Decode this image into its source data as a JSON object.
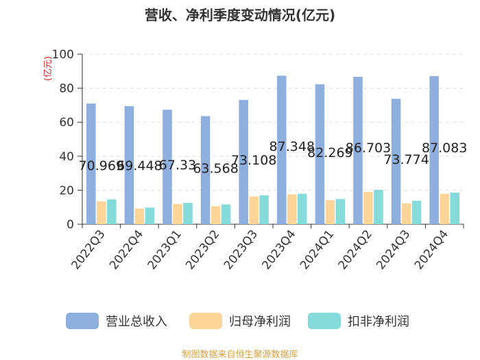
{
  "title": "营收、净利季度变动情况(亿元)",
  "source": "制图数据来自恒生聚源数据库",
  "chart_data": {
    "type": "bar",
    "title": "营收、净利季度变动情况(亿元)",
    "ylabel": "(亿元)",
    "ylim": [
      0,
      100
    ],
    "yticks": [
      0,
      20,
      40,
      60,
      80,
      100
    ],
    "grid": true,
    "legend_position": "bottom",
    "categories": [
      "2022Q3",
      "2022Q4",
      "2023Q1",
      "2023Q2",
      "2023Q3",
      "2023Q4",
      "2024Q1",
      "2024Q2",
      "2024Q3",
      "2024Q4"
    ],
    "series": [
      {
        "name": "营业总收入",
        "color": "#8eaede",
        "values": [
          70.969,
          69.448,
          67.33,
          63.568,
          73.108,
          87.348,
          82.269,
          86.703,
          73.774,
          87.083
        ]
      },
      {
        "name": "归母净利润",
        "color": "#fdd598",
        "values": [
          13.5,
          9.2,
          11.9,
          10.6,
          16.3,
          17.6,
          14.1,
          19.0,
          12.3,
          17.9
        ]
      },
      {
        "name": "扣非净利润",
        "color": "#85dada",
        "values": [
          14.6,
          9.8,
          12.6,
          11.6,
          17.0,
          17.9,
          14.8,
          20.2,
          13.8,
          18.6
        ]
      }
    ],
    "data_labels": [
      "70.969",
      "69.448",
      "67.33",
      "63.568",
      "73.108",
      "87.348",
      "82.269",
      "86.703",
      "73.774",
      "87.083"
    ]
  }
}
